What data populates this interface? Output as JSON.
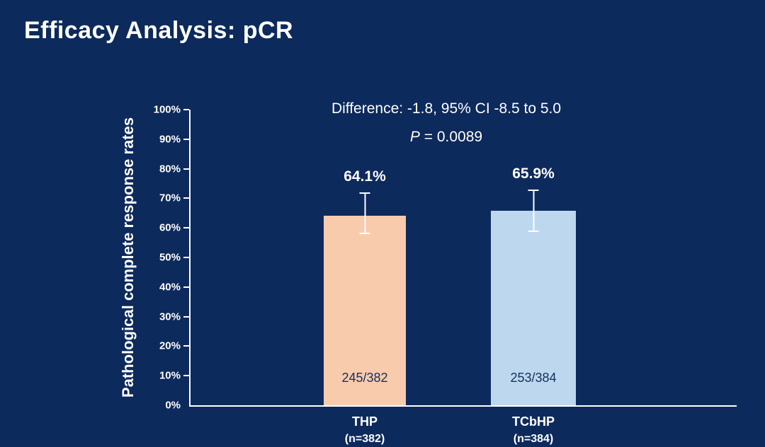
{
  "slide": {
    "title": "Efficacy Analysis: pCR"
  },
  "chart_data": {
    "type": "bar",
    "title": "Efficacy Analysis: pCR",
    "xlabel": "",
    "ylabel": "Pathological complete response rates",
    "ylim": [
      0,
      100
    ],
    "ytick_step": 10,
    "ytick_labels": [
      "0%",
      "10%",
      "20%",
      "30%",
      "40%",
      "50%",
      "60%",
      "70%",
      "80%",
      "90%",
      "100%"
    ],
    "grid": false,
    "legend": "none",
    "annotation": {
      "difference": "Difference: -1.8, 95% CI -8.5 to 5.0",
      "p_symbol": "P",
      "p_rest": " = 0.0089"
    },
    "bars": [
      {
        "category": "THP",
        "category_sub": "(n=382)",
        "value": 64.1,
        "value_label": "64.1%",
        "fraction": "245/382",
        "color": "#F8CBAD",
        "error_low": 58.0,
        "error_high": 72.0
      },
      {
        "category": "TCbHP",
        "category_sub": "(n=384)",
        "value": 65.9,
        "value_label": "65.9%",
        "fraction": "253/384",
        "color": "#BDD7EE",
        "error_low": 58.5,
        "error_high": 73.0
      }
    ],
    "colors": {
      "background": "#0D2A5C",
      "axis": "#FFFFFF",
      "text": "#FFFFFF",
      "error_bar": "#FFFFFF",
      "fraction_text": "#14305C"
    }
  }
}
